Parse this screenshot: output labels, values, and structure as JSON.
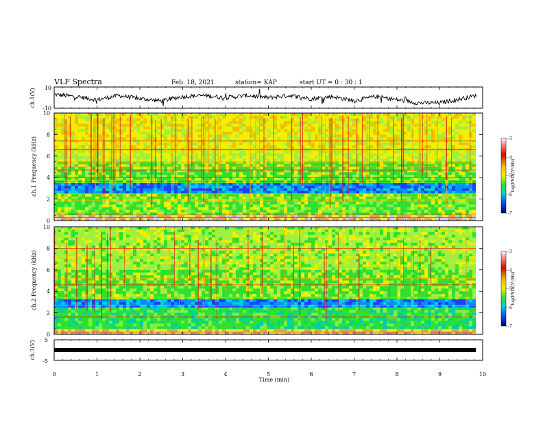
{
  "header": {
    "title": "VLF Spectra",
    "date": "Feb. 18, 2021",
    "station": "station= KAP",
    "start": "start  UT =  0 : 30 : 1"
  },
  "chart_data": [
    {
      "type": "line",
      "name": "ch1-waveform",
      "ylabel": "ch.1(V)",
      "ylim": [
        -10,
        10
      ],
      "yticks": [
        "10",
        "-10"
      ],
      "xlim": [
        0,
        10
      ],
      "x": [
        0,
        0.5,
        1,
        1.5,
        2,
        2.5,
        3,
        3.5,
        4,
        4.5,
        5,
        5.5,
        6,
        6.5,
        7,
        7.5,
        8,
        8.5,
        9,
        9.5,
        9.85
      ],
      "y": [
        3,
        1,
        -2,
        2,
        -1,
        -3,
        1,
        2,
        0,
        2,
        0,
        2,
        -1,
        1,
        -3,
        1,
        -2,
        -5,
        -5,
        -1,
        2
      ]
    },
    {
      "type": "heatmap",
      "name": "ch1-spectrogram",
      "ylabel": "ch.1 Frequency (kHz)",
      "ylim": [
        0,
        10
      ],
      "yticks": [
        "0",
        "2",
        "4",
        "6",
        "8",
        "10"
      ],
      "xlim": [
        0,
        10
      ],
      "colorbar": {
        "label": "log(PSD)(V²/Hz)",
        "range": [
          -7,
          -3
        ],
        "ticks": [
          "-3",
          "-4",
          "-5",
          "-6",
          "-7"
        ]
      }
    },
    {
      "type": "heatmap",
      "name": "ch2-spectrogram",
      "ylabel": "ch.2 Frequency (kHz)",
      "ylim": [
        0,
        10
      ],
      "yticks": [
        "0",
        "2",
        "4",
        "6",
        "8",
        "10"
      ],
      "xlim": [
        0,
        10
      ],
      "colorbar": {
        "label": "log(PSD)(V²/Hz)",
        "range": [
          -7,
          -3
        ],
        "ticks": [
          "-3",
          "-4",
          "-5",
          "-6",
          "-7"
        ]
      }
    },
    {
      "type": "line",
      "name": "ch3-waveform",
      "ylabel": "ch.3(V)",
      "ylim": [
        -5,
        5
      ],
      "yticks": [
        "5",
        "-5"
      ],
      "xlim": [
        0,
        10
      ],
      "x": [
        0,
        9.85
      ],
      "y": [
        -1,
        -1
      ]
    }
  ],
  "xaxis": {
    "label": "Time  (min)",
    "ticks": [
      "0",
      "1",
      "2",
      "3",
      "4",
      "5",
      "6",
      "7",
      "8",
      "9",
      "10"
    ]
  }
}
